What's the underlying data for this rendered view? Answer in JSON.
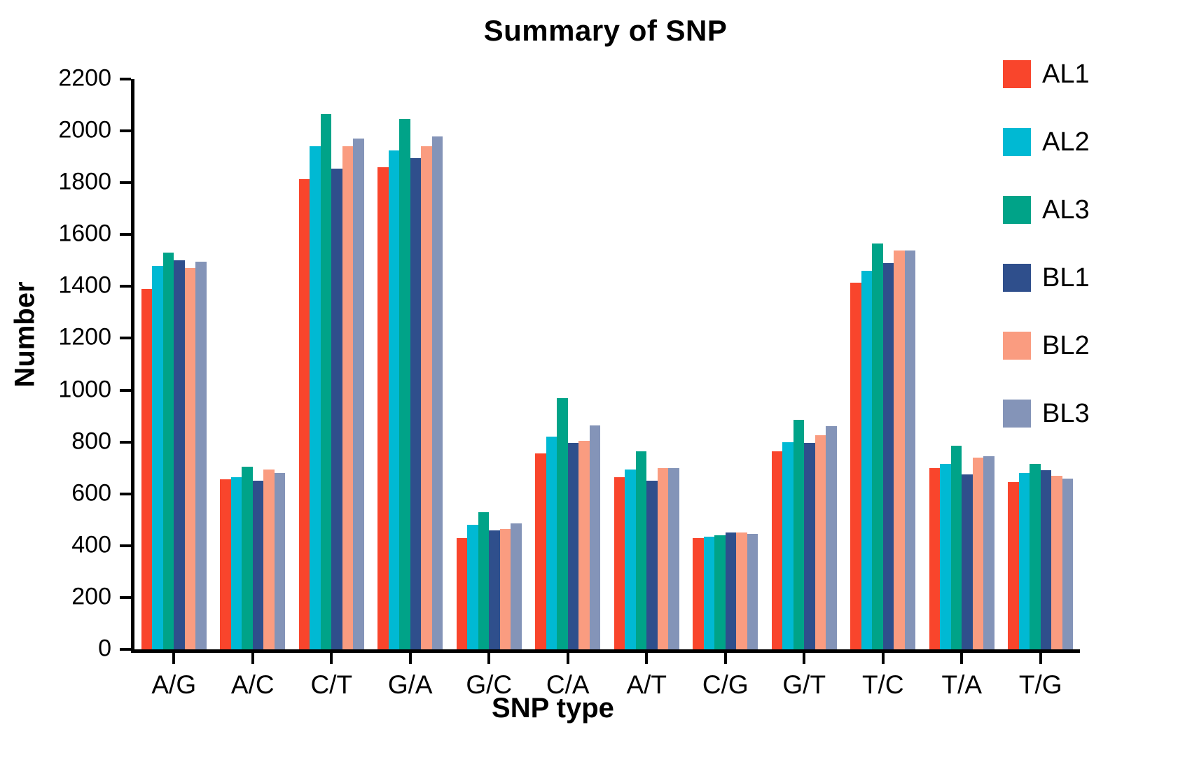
{
  "chart_data": {
    "type": "bar",
    "title": "Summary of SNP",
    "xlabel": "SNP type",
    "ylabel": "Number",
    "ylim": [
      0,
      2200
    ],
    "y_ticks": [
      0,
      200,
      400,
      600,
      800,
      1000,
      1200,
      1400,
      1600,
      1800,
      2000,
      2200
    ],
    "grid": false,
    "legend_position": "right",
    "background_color": "#ffffff",
    "axis_color": "#000000",
    "text_color": "#000000",
    "categories": [
      "A/G",
      "A/C",
      "C/T",
      "G/A",
      "G/C",
      "C/A",
      "A/T",
      "C/G",
      "G/T",
      "T/C",
      "T/A",
      "T/G"
    ],
    "series": [
      {
        "name": "AL1",
        "color": "#F9452C",
        "values": [
          1390,
          655,
          1815,
          1860,
          430,
          755,
          665,
          430,
          765,
          1415,
          700,
          645
        ]
      },
      {
        "name": "AL2",
        "color": "#00B9D3",
        "values": [
          1480,
          665,
          1940,
          1925,
          480,
          820,
          695,
          435,
          800,
          1460,
          715,
          680
        ]
      },
      {
        "name": "AL3",
        "color": "#00A388",
        "values": [
          1530,
          705,
          2065,
          2045,
          530,
          970,
          765,
          440,
          885,
          1565,
          785,
          715
        ]
      },
      {
        "name": "BL1",
        "color": "#2F4F8C",
        "values": [
          1500,
          650,
          1855,
          1895,
          460,
          795,
          650,
          450,
          795,
          1490,
          675,
          690
        ]
      },
      {
        "name": "BL2",
        "color": "#FA9C80",
        "values": [
          1470,
          695,
          1940,
          1940,
          465,
          805,
          700,
          450,
          825,
          1540,
          740,
          670
        ]
      },
      {
        "name": "BL3",
        "color": "#8494B8",
        "values": [
          1495,
          680,
          1970,
          1980,
          485,
          865,
          700,
          445,
          860,
          1540,
          745,
          660
        ]
      }
    ]
  }
}
